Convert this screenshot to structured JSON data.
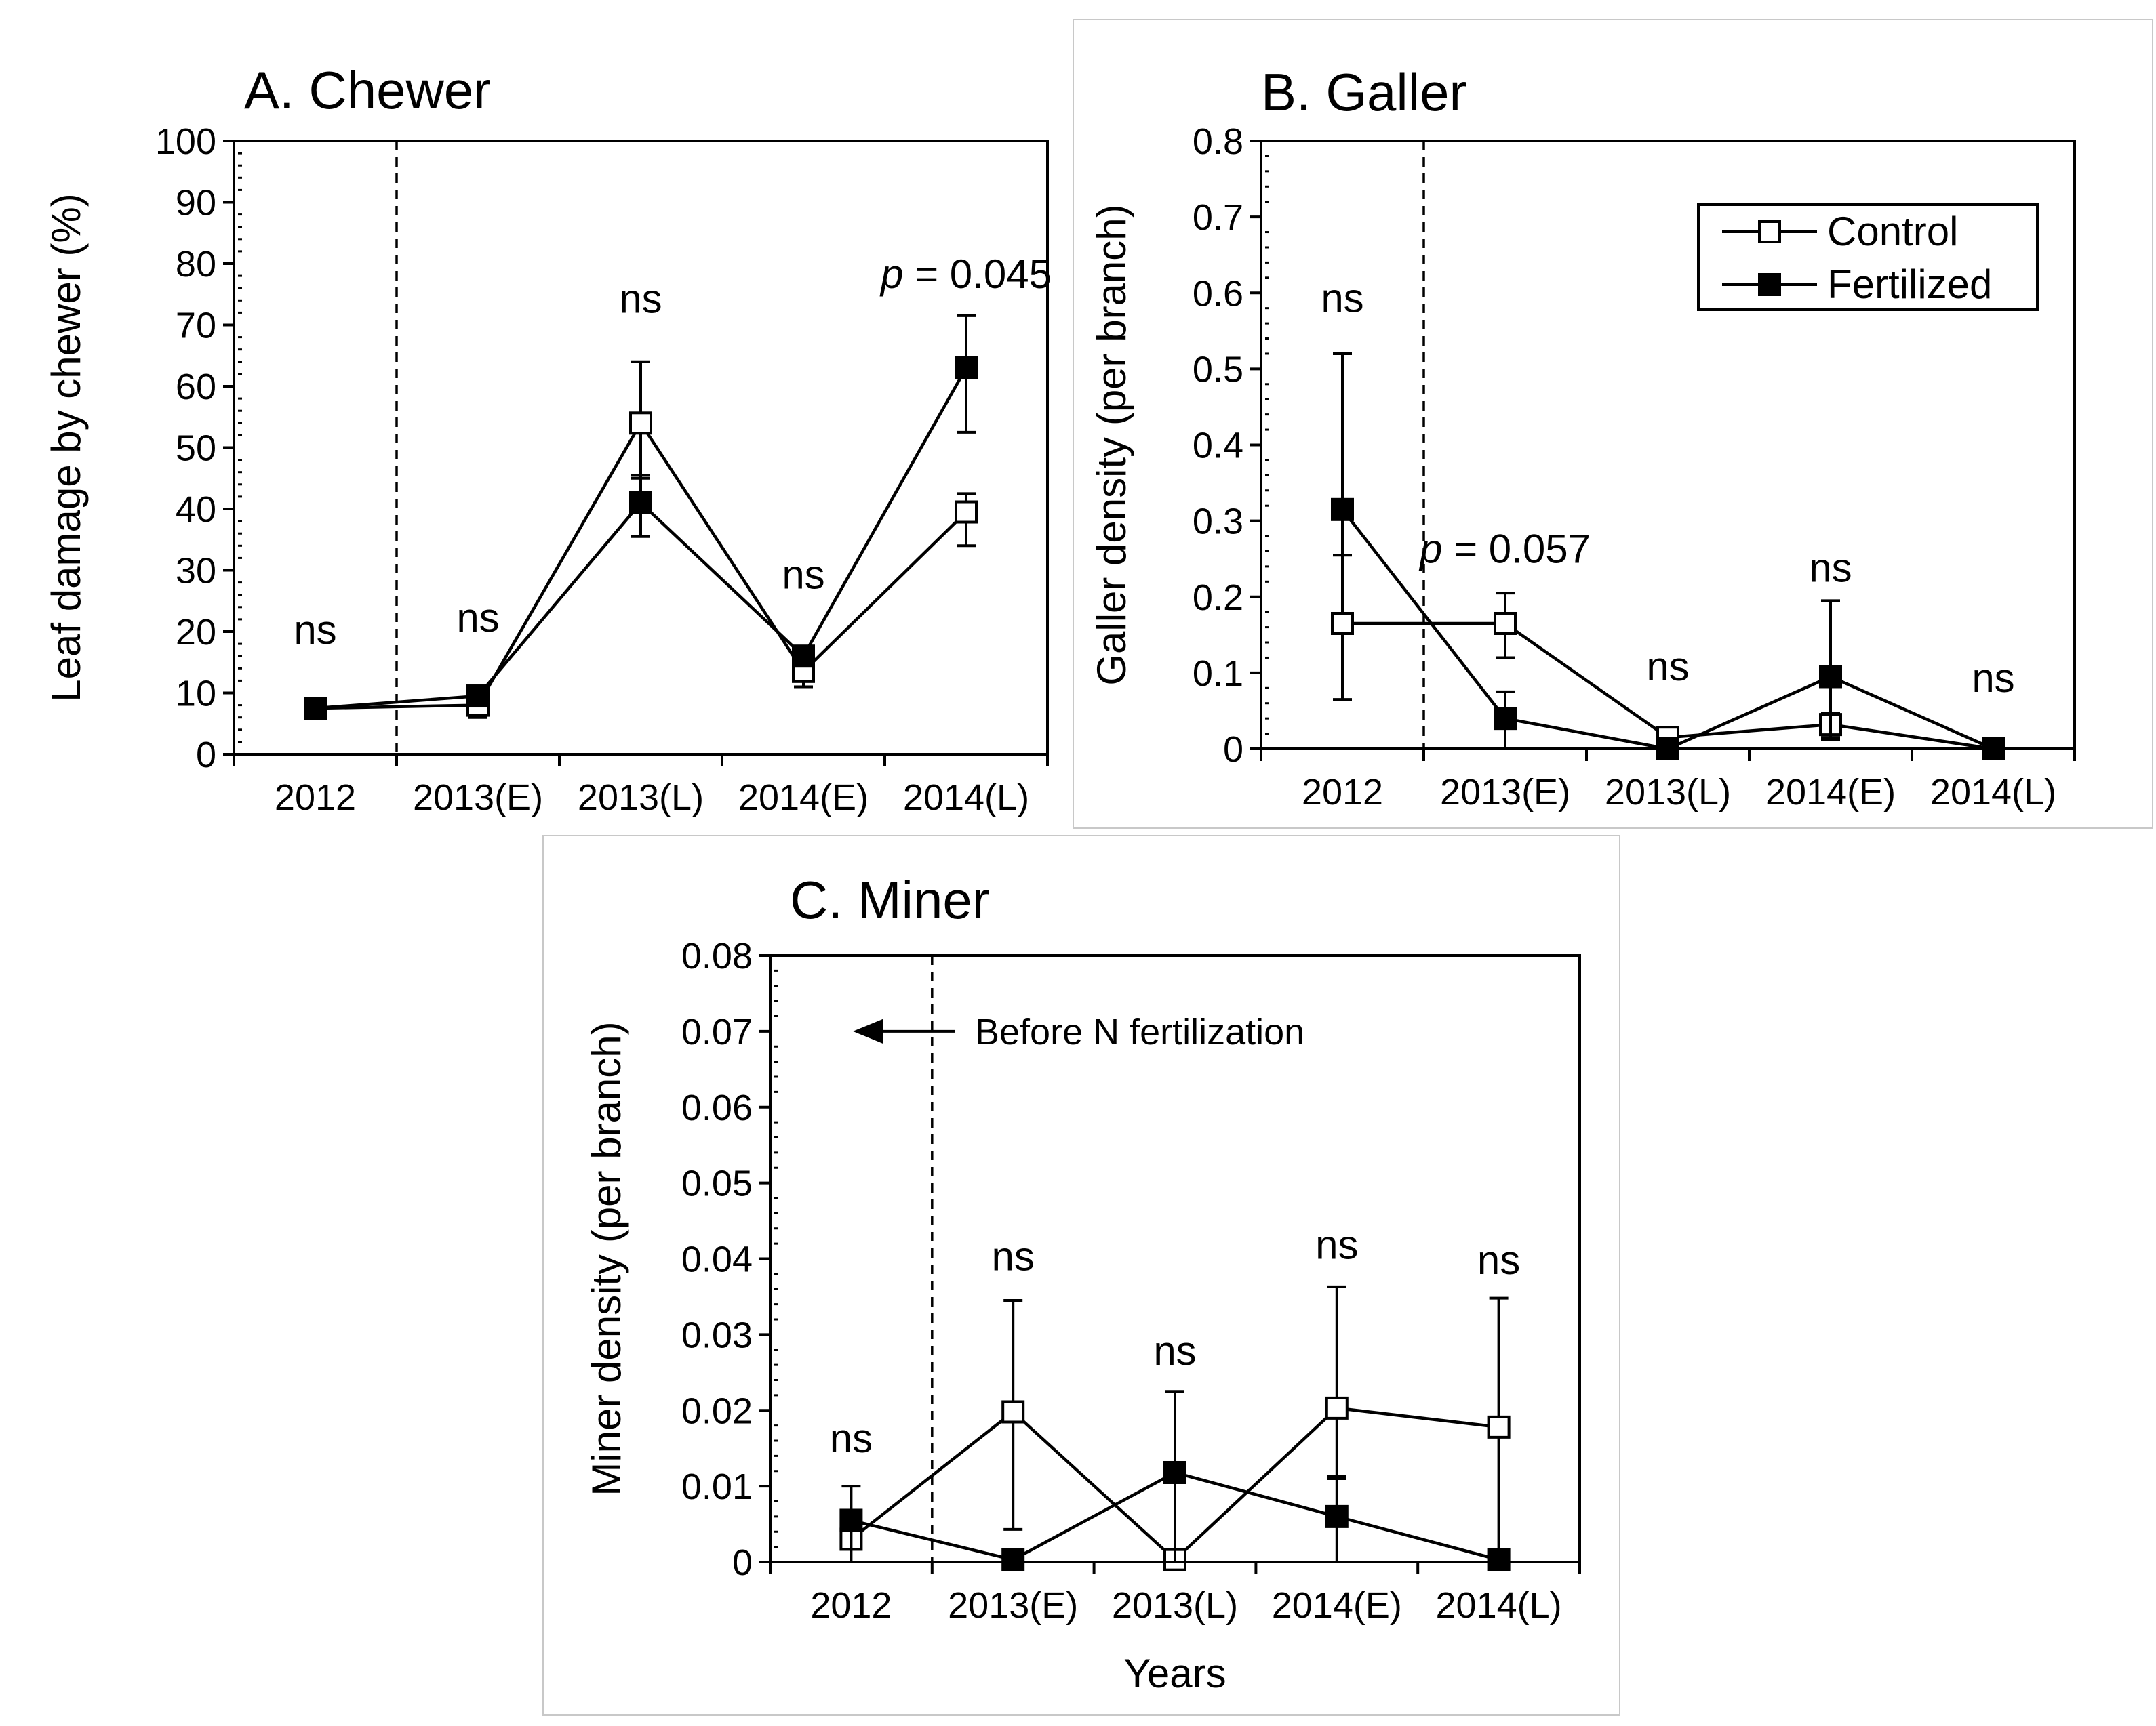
{
  "chart_data": [
    {
      "id": "A",
      "type": "line",
      "title": "A. Chewer",
      "xlabel": "",
      "ylabel": "Leaf damage by chewer (%)",
      "categories": [
        "2012",
        "2013(E)",
        "2013(L)",
        "2014(E)",
        "2014(L)"
      ],
      "ylim": [
        0,
        100
      ],
      "yticks": [
        0,
        10,
        20,
        30,
        40,
        50,
        60,
        70,
        80,
        90,
        100
      ],
      "series": [
        {
          "name": "Control",
          "marker": "open-square",
          "values": [
            7.5,
            8,
            54,
            13.5,
            39.5
          ],
          "err_up": [
            0.8,
            2,
            10,
            2.5,
            3
          ],
          "err_down": [
            0.8,
            2,
            9,
            2.5,
            5.5
          ]
        },
        {
          "name": "Fertilized",
          "marker": "filled-square",
          "values": [
            7.5,
            9.5,
            41,
            16,
            63
          ],
          "err_up": [
            0.8,
            1.5,
            4.5,
            1.5,
            8.5
          ],
          "err_down": [
            0.8,
            1.5,
            5.5,
            1.5,
            10.5
          ]
        }
      ],
      "annotations": [
        {
          "cat": 0,
          "y": 18,
          "text": "ns"
        },
        {
          "cat": 1,
          "y": 20,
          "text": "ns"
        },
        {
          "cat": 2,
          "y": 72,
          "text": "ns"
        },
        {
          "cat": 3,
          "y": 27,
          "text": "ns"
        },
        {
          "cat": 4,
          "y": 76,
          "text_italic": "p",
          "text": " = 0.045"
        }
      ],
      "vline_after_category": 0
    },
    {
      "id": "B",
      "type": "line",
      "title": "B. Galler",
      "xlabel": "",
      "ylabel": "Galler density (per branch)",
      "categories": [
        "2012",
        "2013(E)",
        "2013(L)",
        "2014(E)",
        "2014(L)"
      ],
      "ylim": [
        0,
        0.8
      ],
      "yticks": [
        "0",
        "0.1",
        "0.2",
        "0.3",
        "0.4",
        "0.5",
        "0.6",
        "0.7",
        "0.8"
      ],
      "series": [
        {
          "name": "Control",
          "marker": "open-square",
          "values": [
            0.165,
            0.165,
            0.015,
            0.032,
            0
          ],
          "err_up": [
            0.09,
            0.04,
            0.008,
            0.015,
            0
          ],
          "err_down": [
            0.1,
            0.045,
            0.01,
            0.02,
            0
          ]
        },
        {
          "name": "Fertilized",
          "marker": "filled-square",
          "values": [
            0.315,
            0.04,
            0,
            0.095,
            0
          ],
          "err_up": [
            0.205,
            0.035,
            0,
            0.1,
            0
          ],
          "err_down": [
            0.06,
            0.04,
            0,
            0.08,
            0
          ]
        }
      ],
      "legend": {
        "entries": [
          "Control",
          "Fertilized"
        ],
        "placement": "top-right"
      },
      "annotations": [
        {
          "cat": 0,
          "y": 0.575,
          "text": "ns"
        },
        {
          "cat": 1,
          "y": 0.245,
          "text_italic": "p",
          "text": " = 0.057"
        },
        {
          "cat": 2,
          "y": 0.09,
          "text": "ns"
        },
        {
          "cat": 3,
          "y": 0.22,
          "text": "ns"
        },
        {
          "cat": 4,
          "y": 0.075,
          "text": "ns"
        }
      ],
      "vline_after_category": 0
    },
    {
      "id": "C",
      "type": "line",
      "title": "C. Miner",
      "xlabel": "Years",
      "ylabel": "Miner density (per branch)",
      "categories": [
        "2012",
        "2013(E)",
        "2013(L)",
        "2014(E)",
        "2014(L)"
      ],
      "ylim": [
        0,
        0.08
      ],
      "yticks": [
        "0",
        "0.01",
        "0.02",
        "0.03",
        "0.04",
        "0.05",
        "0.06",
        "0.07",
        "0.08"
      ],
      "series": [
        {
          "name": "Control",
          "marker": "open-square",
          "values": [
            0.003,
            0.0198,
            0.0003,
            0.0203,
            0.0178
          ],
          "err_up": [
            0,
            0.0147,
            0,
            0.016,
            0.017
          ],
          "err_down": [
            0,
            0.0155,
            0,
            0.009,
            0.0178
          ]
        },
        {
          "name": "Fertilized",
          "marker": "filled-square",
          "values": [
            0.0055,
            0.0003,
            0.0118,
            0.006,
            0.0003
          ],
          "err_up": [
            0.0045,
            0,
            0.0107,
            0.005,
            0
          ],
          "err_down": [
            0.0055,
            0,
            0.0118,
            0.006,
            0
          ]
        }
      ],
      "annotations": [
        {
          "cat": 0,
          "y": 0.0145,
          "text": "ns"
        },
        {
          "cat": 1,
          "y": 0.0385,
          "text": "ns"
        },
        {
          "cat": 2,
          "y": 0.026,
          "text": "ns"
        },
        {
          "cat": 3,
          "y": 0.04,
          "text": "ns"
        },
        {
          "cat": 4,
          "y": 0.038,
          "text": "ns"
        }
      ],
      "arrow_note": {
        "text": "Before N fertilization",
        "y": 0.07
      },
      "vline_after_category": 0
    }
  ]
}
